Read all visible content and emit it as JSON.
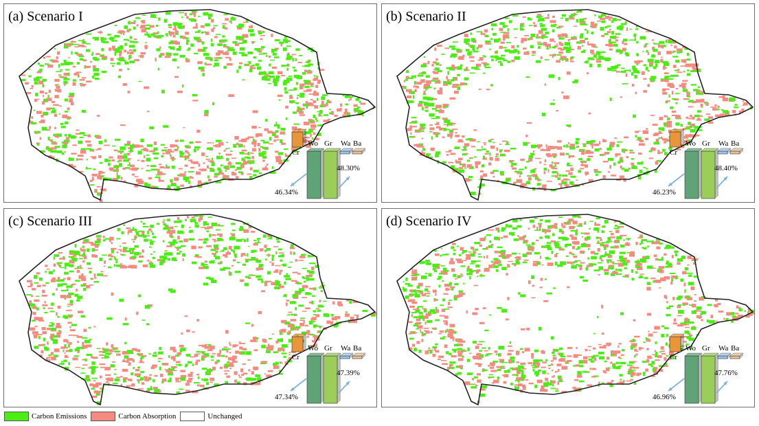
{
  "panels": [
    {
      "title": "(a) Scenario I",
      "left_pct": "46.34%",
      "right_pct": "48.30%"
    },
    {
      "title": "(b) Scenario II",
      "left_pct": "46.23%",
      "right_pct": "48.40%"
    },
    {
      "title": "(c) Scenario III",
      "left_pct": "47.34%",
      "right_pct": "47.39%"
    },
    {
      "title": "(d) Scenario IV",
      "left_pct": "46.96%",
      "right_pct": "47.76%"
    }
  ],
  "bar_labels": {
    "cr": "Cr",
    "wo": "Wo",
    "gr": "Gr",
    "wa": "Wa",
    "ba": "Ba"
  },
  "bar_colors": {
    "cr": "#e9963a",
    "wo": "#5fa376",
    "gr": "#9acd5a",
    "wa": "#9dc3e6",
    "ba": "#e2c29c"
  },
  "legend": [
    {
      "label": "Carbon Emissions",
      "color": "#4bed13"
    },
    {
      "label": "Carbon Absorption",
      "color": "#f48a80"
    },
    {
      "label": "Unchanged",
      "color": "#ffffff"
    }
  ]
}
